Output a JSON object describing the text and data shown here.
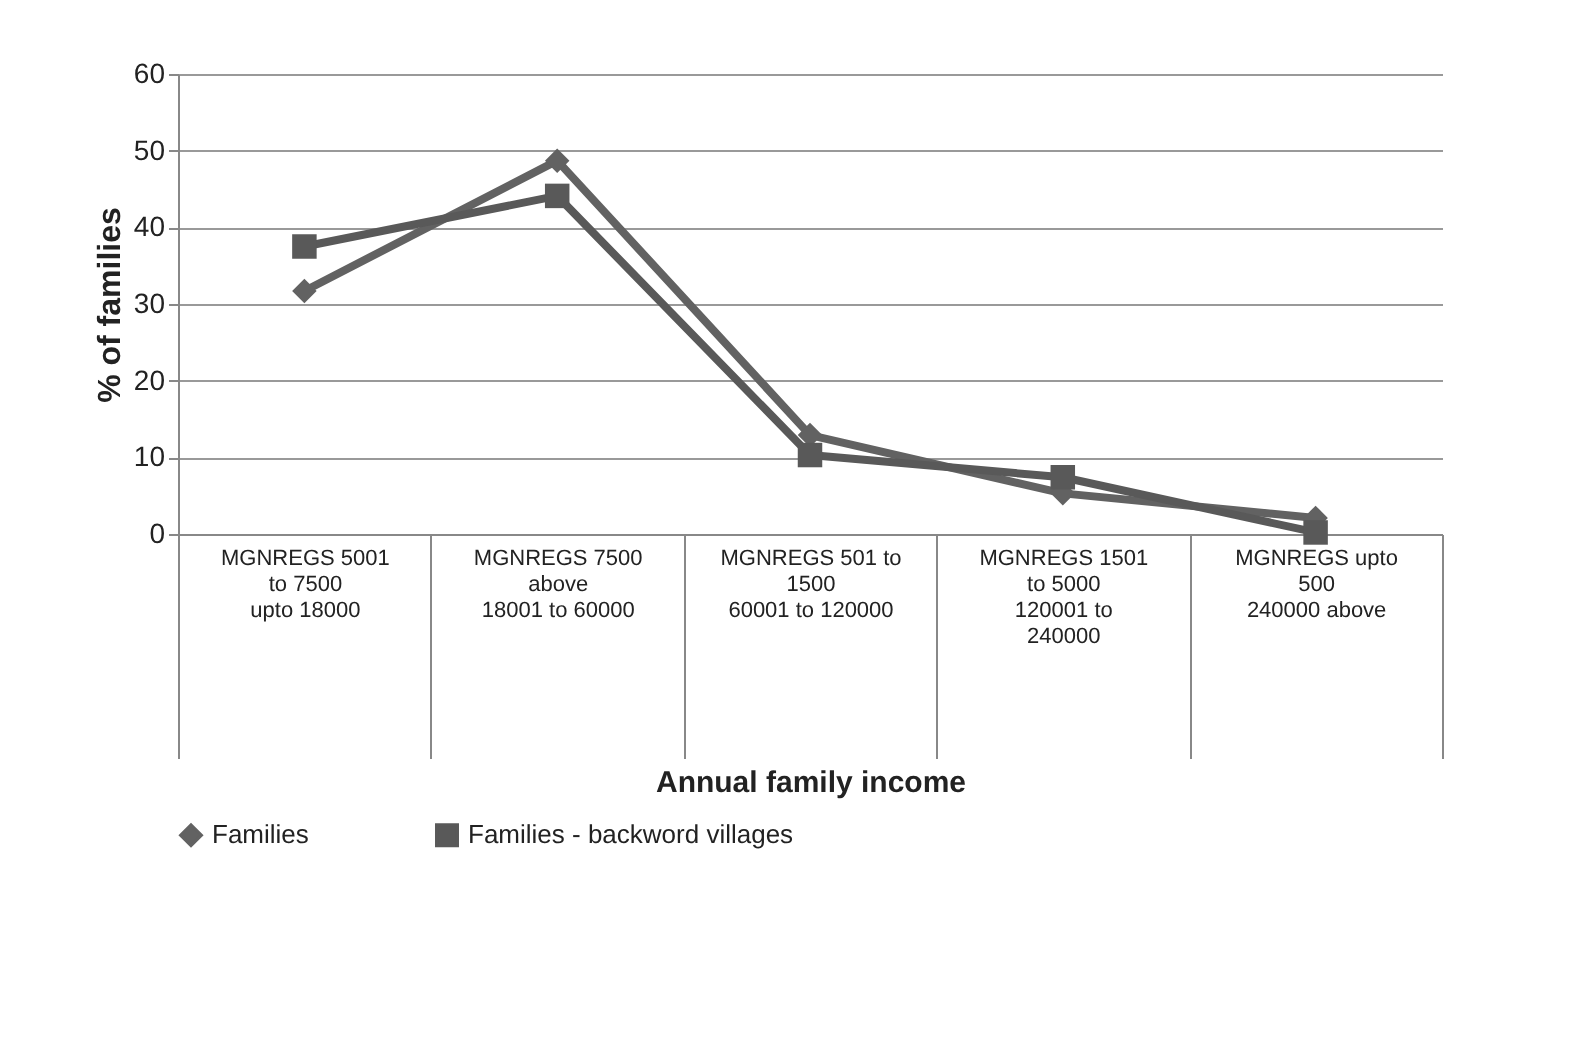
{
  "chart_data": {
    "type": "line",
    "ylabel": "% of families",
    "xlabel": "Annual family income",
    "categories": [
      "MGNREGS 5001\nto 7500\n\nupto 18000",
      "MGNREGS 7500\nabove\n\n18001 to 60000",
      "MGNREGS 501 to\n1500\n\n60001 to 120000",
      "MGNREGS 1501\nto 5000\n\n120001 to\n240000",
      "MGNREGS upto\n500\n\n240000 above"
    ],
    "series": [
      {
        "name": "Families",
        "color": "#626262",
        "marker": "diamond",
        "values": [
          31.7,
          48.7,
          12.9,
          5.3,
          2.1
        ]
      },
      {
        "name": "Families - backword villages",
        "color": "#595959",
        "marker": "square",
        "values": [
          37.5,
          44.1,
          10.3,
          7.4,
          0.2
        ]
      }
    ],
    "ylim": [
      0,
      60
    ],
    "yticks": [
      0,
      10,
      20,
      30,
      40,
      50,
      60
    ],
    "grid": "y",
    "legend": "bottom",
    "line_style": "solid"
  }
}
